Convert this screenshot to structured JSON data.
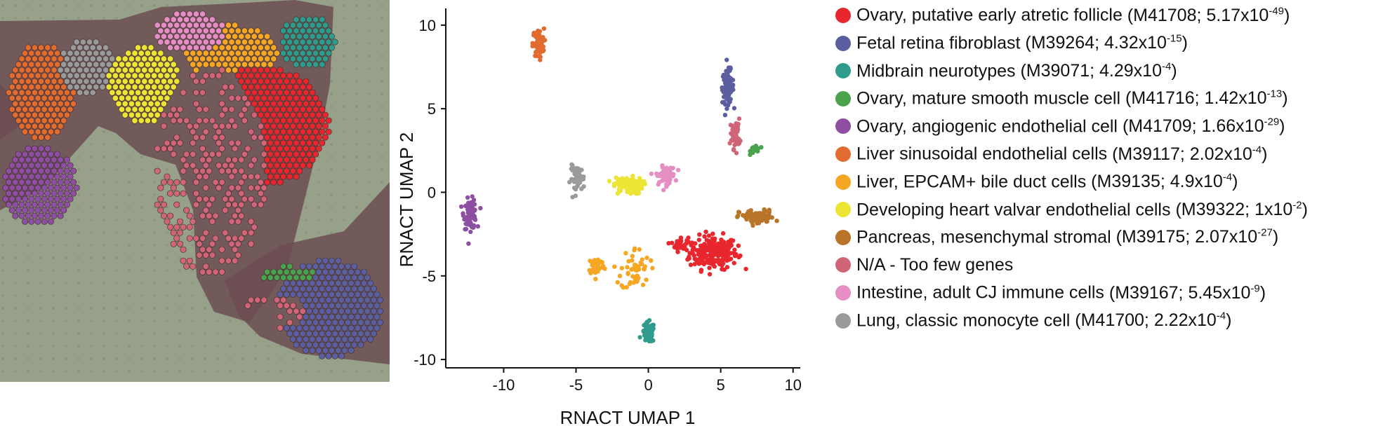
{
  "chart_data": {
    "type": "scatter",
    "xlabel": "RNACT UMAP 1",
    "ylabel": "RNACT UMAP 2",
    "xlim": [
      -14,
      10.5
    ],
    "ylim": [
      -10.5,
      11
    ],
    "xticks": [
      -10,
      -5,
      0,
      5,
      10
    ],
    "yticks": [
      -10,
      -5,
      0,
      5,
      10
    ],
    "grid": false,
    "legend_position": "right",
    "series": [
      {
        "key": "ovary_atretic",
        "name": "Ovary, putative early atretic follicle",
        "id": "M41708",
        "p_mant": "5.17",
        "p_exp": "-49",
        "color": "#e8262d",
        "clusters": [
          {
            "x": 4.5,
            "y": -3.6,
            "sx": 1.5,
            "sy": 0.9,
            "n": 220
          },
          {
            "x": 2.2,
            "y": -3.1,
            "sx": 0.5,
            "sy": 0.4,
            "n": 30
          }
        ]
      },
      {
        "key": "fetal_retina",
        "name": "Fetal retina fibroblast",
        "id": "M39264",
        "p_mant": "4.32",
        "p_exp": "-15",
        "color": "#5b5fa0",
        "clusters": [
          {
            "x": 5.5,
            "y": 6.3,
            "sx": 0.35,
            "sy": 0.9,
            "n": 120
          }
        ]
      },
      {
        "key": "midbrain",
        "name": "Midbrain neurotypes",
        "id": "M39071",
        "p_mant": "4.29",
        "p_exp": "-4",
        "color": "#2f9b8a",
        "clusters": [
          {
            "x": 0.0,
            "y": -8.4,
            "sx": 0.4,
            "sy": 0.55,
            "n": 70
          }
        ]
      },
      {
        "key": "smooth_muscle",
        "name": "Ovary, mature smooth muscle cell",
        "id": "M41716",
        "p_mant": "1.42",
        "p_exp": "-13",
        "color": "#4aa24c",
        "clusters": [
          {
            "x": 7.4,
            "y": 2.6,
            "sx": 0.3,
            "sy": 0.25,
            "n": 25
          }
        ]
      },
      {
        "key": "angiogenic",
        "name": "Ovary, angiogenic endothelial cell",
        "id": "M41709",
        "p_mant": "1.66",
        "p_exp": "-29",
        "color": "#8e4fa3",
        "clusters": [
          {
            "x": -12.3,
            "y": -1.3,
            "sx": 0.4,
            "sy": 0.8,
            "n": 80
          }
        ]
      },
      {
        "key": "liver_sinusoidal",
        "name": "Liver sinusoidal endothelial cells",
        "id": "M39117",
        "p_mant": "2.02",
        "p_exp": "-4",
        "color": "#e26b2f",
        "clusters": [
          {
            "x": -7.6,
            "y": 8.9,
            "sx": 0.35,
            "sy": 0.8,
            "n": 70
          }
        ]
      },
      {
        "key": "liver_bile",
        "name": "Liver, EPCAM+ bile duct cells",
        "id": "M39135",
        "p_mant": "4.9",
        "p_exp": "-4",
        "color": "#f5a623",
        "clusters": [
          {
            "x": -3.6,
            "y": -4.4,
            "sx": 0.5,
            "sy": 0.5,
            "n": 50
          },
          {
            "x": -0.9,
            "y": -4.6,
            "sx": 0.9,
            "sy": 1.2,
            "n": 50
          }
        ]
      },
      {
        "key": "heart_valvar",
        "name": "Developing heart valvar endothelial cells",
        "id": "M39322",
        "p_mant": "1",
        "p_exp": "-2",
        "color": "#ece534",
        "clusters": [
          {
            "x": -1.4,
            "y": 0.4,
            "sx": 0.9,
            "sy": 0.45,
            "n": 110
          }
        ]
      },
      {
        "key": "pancreas",
        "name": "Pancreas, mesenchymal stromal",
        "id": "M39175",
        "p_mant": "2.07",
        "p_exp": "-27",
        "color": "#b87428",
        "clusters": [
          {
            "x": 7.5,
            "y": -1.5,
            "sx": 1.1,
            "sy": 0.4,
            "n": 80
          }
        ]
      },
      {
        "key": "na",
        "name": "N/A - Too few genes",
        "id": "",
        "p_mant": "",
        "p_exp": "",
        "color": "#d06578",
        "clusters": [
          {
            "x": 6.0,
            "y": 3.5,
            "sx": 0.3,
            "sy": 0.8,
            "n": 45
          }
        ]
      },
      {
        "key": "intestine",
        "name": "Intestine, adult CJ immune cells",
        "id": "M39167",
        "p_mant": "5.45",
        "p_exp": "-9",
        "color": "#e48ec3",
        "clusters": [
          {
            "x": 1.2,
            "y": 1.0,
            "sx": 0.6,
            "sy": 0.5,
            "n": 60
          }
        ]
      },
      {
        "key": "lung",
        "name": "Lung, classic monocyte cell",
        "id": "M41700",
        "p_mant": "2.22",
        "p_exp": "-4",
        "color": "#9a9a9a",
        "clusters": [
          {
            "x": -4.9,
            "y": 0.8,
            "sx": 0.45,
            "sy": 0.7,
            "n": 55
          }
        ]
      }
    ]
  },
  "tissue": {
    "background": "#97a088",
    "stain": "#6b4c52"
  }
}
